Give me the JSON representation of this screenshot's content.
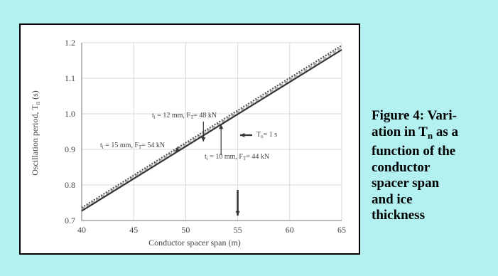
{
  "caption": {
    "line1": "Figure 4: Vari-",
    "line2a": "ation in T",
    "line2sub": "n",
    "line2b": " as a",
    "line3": "function of the",
    "line4": "conductor",
    "line5": "spacer span",
    "line6": "and ice",
    "line7": "thickness"
  },
  "chart_data": {
    "type": "line",
    "xlabel": "Conductor spacer span (m)",
    "ylabel": "Oscillation period, T",
    "ylabel_sub": "n",
    "ylabel_suffix": " (s)",
    "xlim": [
      40,
      65
    ],
    "ylim": [
      0.7,
      1.2
    ],
    "xticks": [
      "40",
      "45",
      "50",
      "55",
      "60",
      "65"
    ],
    "yticks": [
      "0.7",
      "0.8",
      "0.9",
      "1.0",
      "1.1",
      "1.2"
    ],
    "grid": true,
    "series": [
      {
        "name": "ti = 10 mm, FT = 44 kN",
        "x": [
          40,
          65
        ],
        "y": [
          0.727,
          1.18
        ],
        "color": "#333333",
        "dash": ""
      },
      {
        "name": "ti = 12 mm, FT = 48 kN",
        "x": [
          40,
          65
        ],
        "y": [
          0.732,
          1.186
        ],
        "color": "#aaaaaa",
        "dash": "5,3"
      },
      {
        "name": "ti = 15 mm, FT = 54 kN",
        "x": [
          40,
          65
        ],
        "y": [
          0.736,
          1.192
        ],
        "color": "#555555",
        "dash": "2,2"
      }
    ],
    "annotations": [
      {
        "id": "ann-12",
        "text_a": "t",
        "text_sub": "i",
        "text_b": " = 12 mm, F",
        "text_sub2": "T",
        "text_c": "= 48 kN"
      },
      {
        "id": "ann-15",
        "text_a": "t",
        "text_sub": "i",
        "text_b": " = 15 mm, F",
        "text_sub2": "T",
        "text_c": "= 54 kN"
      },
      {
        "id": "ann-10",
        "text_a": "t",
        "text_sub": "i",
        "text_b": " = 10 mm, F",
        "text_sub2": "T",
        "text_c": "= 44 kN"
      },
      {
        "id": "ann-tn",
        "text_a": "T",
        "text_sub": "n",
        "text_b": "= 1 s",
        "text_sub2": "",
        "text_c": ""
      }
    ]
  }
}
